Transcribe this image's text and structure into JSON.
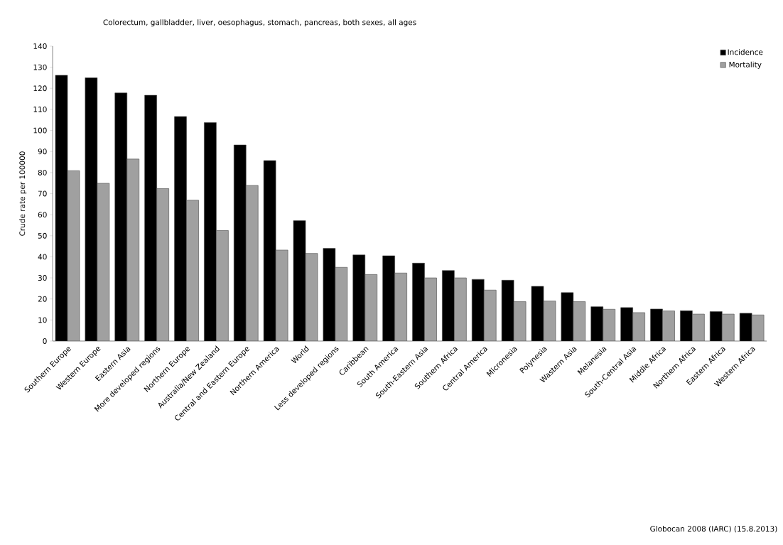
{
  "chart_data": {
    "type": "bar",
    "title": "Colorectum, gallbladder, liver, oesophagus, stomach, pancreas, both sexes, all ages",
    "ylabel": "Crude rate per 100000",
    "categories": [
      "Southern Europe",
      "Western Europe",
      "Eastern Asia",
      "More developed regions",
      "Northern Europe",
      "Australia/New Zealand",
      "Central and Eastern Europe",
      "Northern America",
      "World",
      "Less developed regions",
      "Caribbean",
      "South America",
      "South-Eastern Asia",
      "Southern Africa",
      "Central America",
      "Micronesia",
      "Polynesia",
      "Wastern Asia",
      "Melanesia",
      "South-Central Asia",
      "Middle Africa",
      "Northern Africa",
      "Eastern Africa",
      "Western Africa"
    ],
    "series": [
      {
        "name": "Incidence",
        "color": "#000000",
        "values": [
          126.2,
          125,
          117.8,
          116.7,
          106.6,
          103.7,
          93.1,
          85.7,
          57.2,
          44,
          40.9,
          40.5,
          37,
          33.5,
          29.3,
          28.9,
          26,
          23,
          16.3,
          15.9,
          15.2,
          14.4,
          14,
          13.2
        ]
      },
      {
        "name": "Mortality",
        "color": "#a0a0a0",
        "values": [
          80.9,
          74.9,
          86.4,
          72.4,
          66.9,
          52.5,
          73.9,
          43.2,
          41.6,
          35,
          31.6,
          32.3,
          30,
          30,
          24.2,
          18.7,
          19,
          18.7,
          15.1,
          13.5,
          14.3,
          12.8,
          12.8,
          12.4
        ]
      }
    ],
    "ylim": [
      0,
      140
    ],
    "yticks": [
      0,
      10,
      20,
      30,
      40,
      50,
      60,
      70,
      80,
      90,
      100,
      110,
      120,
      130,
      140
    ],
    "grid": false,
    "legend": "top right",
    "annotations": [
      "Globocan 2008 (IARC) (15.8.2013)"
    ]
  }
}
